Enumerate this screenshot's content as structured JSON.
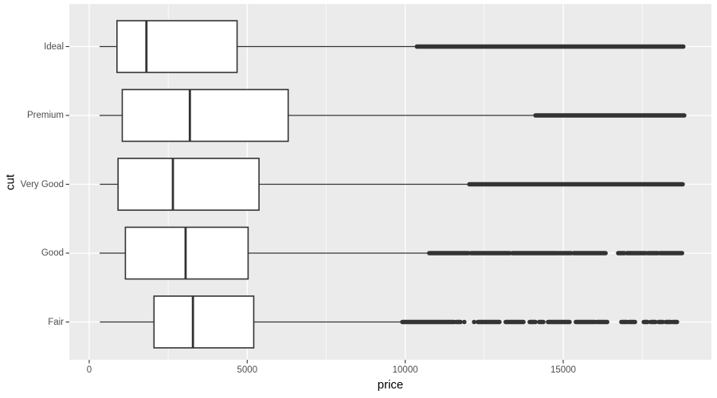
{
  "chart_data": {
    "type": "boxplot",
    "orientation": "horizontal",
    "title": "",
    "xlabel": "price",
    "ylabel": "cut",
    "x_domain": [
      -630,
      19690
    ],
    "x_major_ticks": [
      {
        "value": 0,
        "label": "0"
      },
      {
        "value": 5000,
        "label": "5000"
      },
      {
        "value": 10000,
        "label": "10000"
      },
      {
        "value": 15000,
        "label": "15000"
      }
    ],
    "x_minor_ticks": [
      2500,
      7500,
      12500,
      17500
    ],
    "categories": [
      "Ideal",
      "Premium",
      "Very Good",
      "Good",
      "Fair"
    ],
    "series": [
      {
        "cut": "Ideal",
        "min": 326,
        "q1": 878,
        "median": 1810,
        "q3": 4679,
        "whisker_high": 10320,
        "outlier_segments": [
          [
            10370,
            18800
          ]
        ]
      },
      {
        "cut": "Premium",
        "min": 326,
        "q1": 1046,
        "median": 3185,
        "q3": 6296,
        "whisker_high": 14050,
        "outlier_segments": [
          [
            14120,
            18830
          ]
        ]
      },
      {
        "cut": "Very Good",
        "min": 336,
        "q1": 912,
        "median": 2648,
        "q3": 5373,
        "whisker_high": 11980,
        "outlier_segments": [
          [
            12030,
            18780
          ]
        ]
      },
      {
        "cut": "Good",
        "min": 327,
        "q1": 1145,
        "median": 3050,
        "q3": 5028,
        "whisker_high": 10700,
        "outlier_segments": [
          [
            10760,
            12000
          ],
          [
            12080,
            13310
          ],
          [
            13390,
            14820
          ],
          [
            14870,
            15250
          ],
          [
            15330,
            16340
          ],
          [
            16740,
            16940
          ],
          [
            17020,
            17600
          ],
          [
            17670,
            18000
          ],
          [
            18070,
            18760
          ]
        ]
      },
      {
        "cut": "Fair",
        "min": 337,
        "q1": 2050,
        "median": 3282,
        "q3": 5206,
        "whisker_high": 9880,
        "outlier_segments": [
          [
            9910,
            11340
          ],
          [
            11370,
            11550
          ],
          [
            11620,
            11750
          ],
          [
            11870,
            11870
          ],
          [
            12180,
            12180
          ],
          [
            12300,
            12980
          ],
          [
            13180,
            13740
          ],
          [
            13940,
            14120
          ],
          [
            14240,
            14370
          ],
          [
            14520,
            15200
          ],
          [
            15400,
            16010
          ],
          [
            16080,
            16390
          ],
          [
            16840,
            17020
          ],
          [
            17090,
            17270
          ],
          [
            17550,
            17670
          ],
          [
            17770,
            17920
          ],
          [
            18020,
            18150
          ],
          [
            18250,
            18400
          ],
          [
            18470,
            18600
          ]
        ]
      }
    ],
    "legend": "none",
    "grid": "on",
    "colors": {
      "panel_bg": "#EBEBEB",
      "grid": "#FFFFFF",
      "stroke": "#333333",
      "box_fill": "#FFFFFF",
      "tick_label": "#4D4D4D",
      "axis_title": "#000000"
    }
  }
}
